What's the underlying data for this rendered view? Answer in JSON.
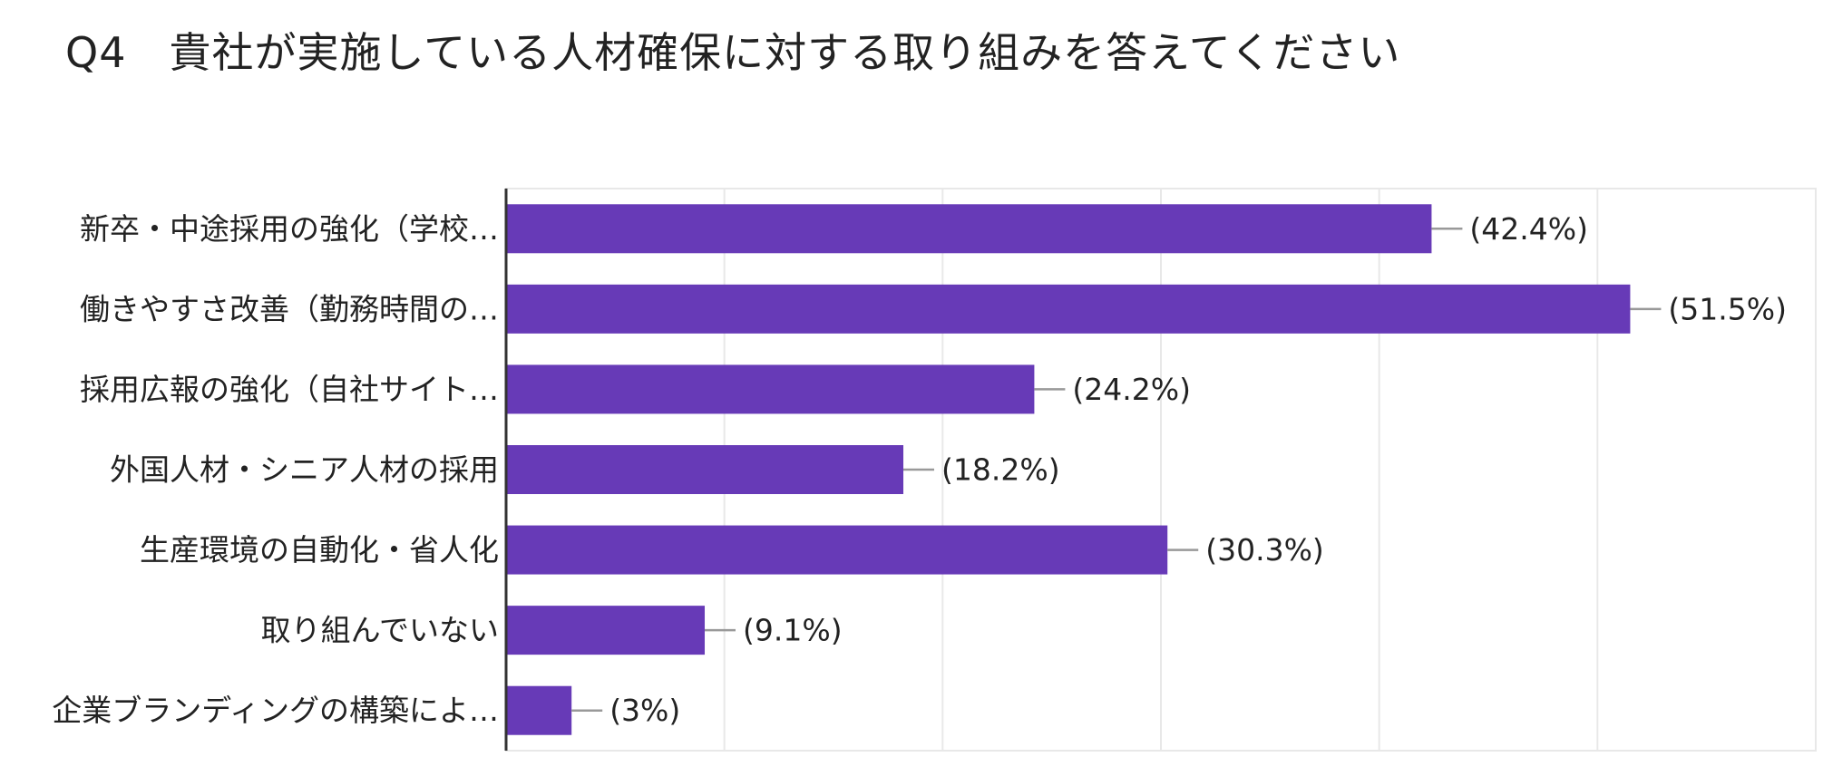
{
  "chart_data": {
    "type": "bar",
    "orientation": "horizontal",
    "title": "Q4　貴社が実施している人材確保に対する取り組みを答えてください",
    "categories": [
      "新卒・中途採用の強化（学校…",
      "働きやすさ改善（勤務時間の…",
      "採用広報の強化（自社サイト…",
      "外国人材・シニア人材の採用",
      "生産環境の自動化・省人化",
      "取り組んでいない",
      "企業ブランディングの構築によ…"
    ],
    "values": [
      42.4,
      51.5,
      24.2,
      18.2,
      30.3,
      9.1,
      3
    ],
    "data_labels": [
      "(42.4%)",
      "(51.5%)",
      "(24.2%)",
      "(18.2%)",
      "(30.3%)",
      "(9.1%)",
      "(3%)"
    ],
    "value_unit": "%",
    "xlim": [
      0,
      60
    ],
    "grid": true,
    "bar_color": "#673ab7",
    "leader_color": "#999999",
    "grid_color": "#e8e8e8",
    "axis_color": "#333333"
  }
}
